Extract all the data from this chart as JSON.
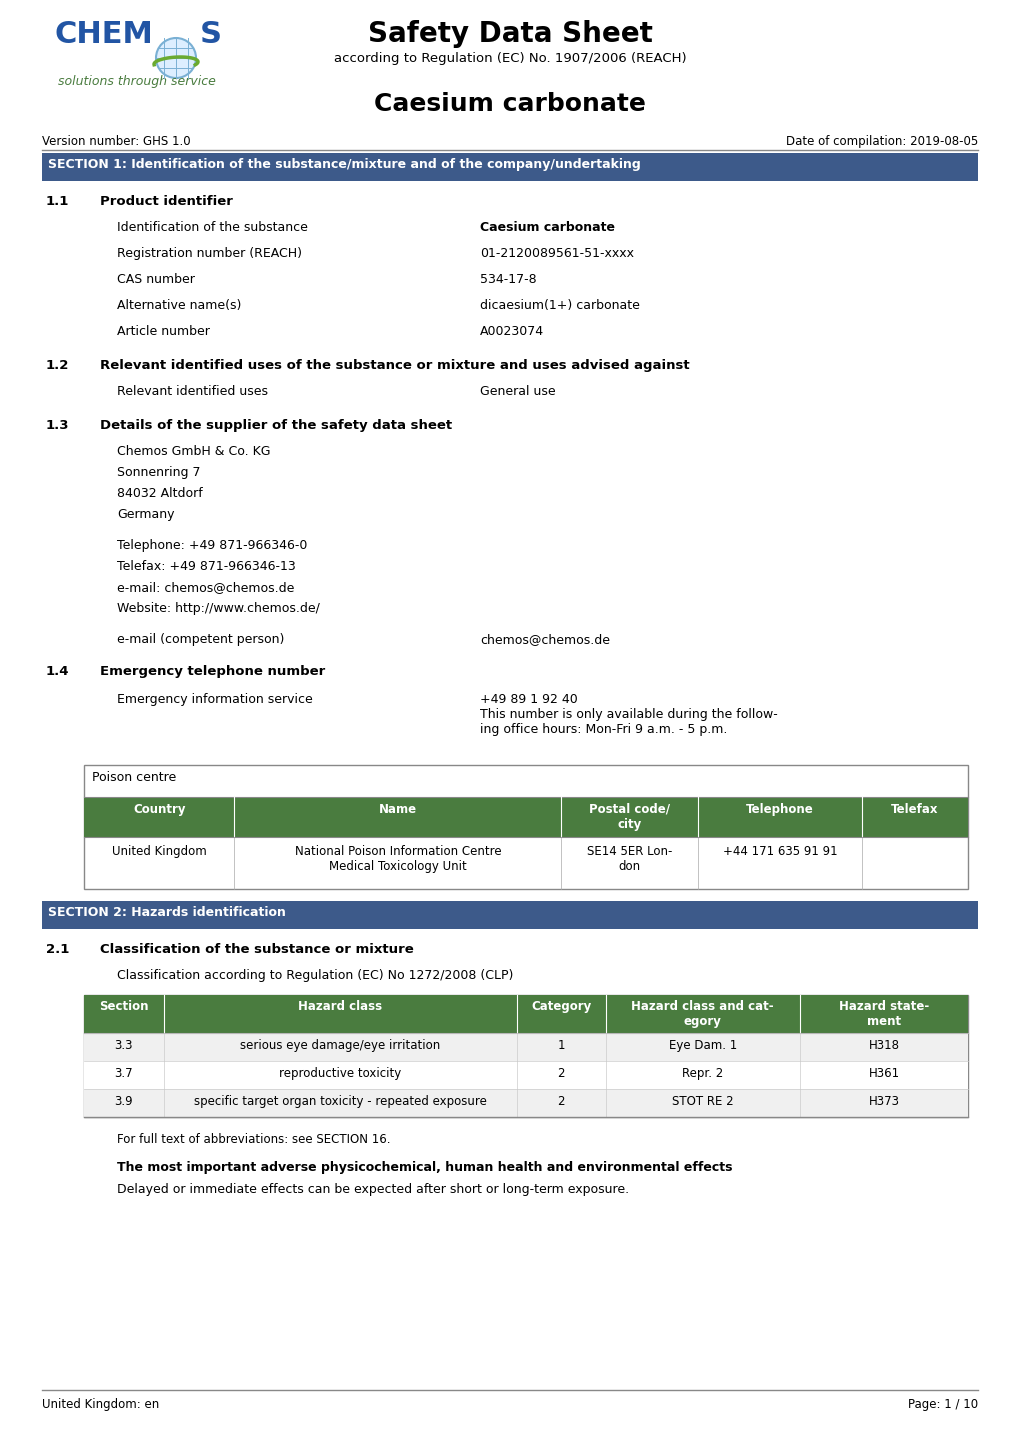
{
  "title": "Safety Data Sheet",
  "subtitle": "according to Regulation (EC) No. 1907/2006 (REACH)",
  "product_name": "Caesium carbonate",
  "version": "Version number: GHS 1.0",
  "date": "Date of compilation: 2019-08-05",
  "section1_title": "SECTION 1: Identification of the substance/mixture and of the company/undertaking",
  "section1_header_bg": "#3d5a8a",
  "section1_header_color": "#ffffff",
  "sub11_title": "Product identifier",
  "product_fields": [
    [
      "Identification of the substance",
      "Caesium carbonate",
      true
    ],
    [
      "Registration number (REACH)",
      "01-2120089561-51-xxxx",
      false
    ],
    [
      "CAS number",
      "534-17-8",
      false
    ],
    [
      "Alternative name(s)",
      "dicaesium(1+) carbonate",
      false
    ],
    [
      "Article number",
      "A0023074",
      false
    ]
  ],
  "sub12_title": "Relevant identified uses of the substance or mixture and uses advised against",
  "relevant_uses": [
    [
      "Relevant identified uses",
      "General use"
    ]
  ],
  "sub13_title": "Details of the supplier of the safety data sheet",
  "supplier_address": [
    "Chemos GmbH & Co. KG",
    "Sonnenring 7",
    "84032 Altdorf",
    "Germany"
  ],
  "supplier_contact": [
    "Telephone: +49 871-966346-0",
    "Telefax: +49 871-966346-13",
    "e-mail: chemos@chemos.de",
    "Website: http://www.chemos.de/"
  ],
  "email_competent": [
    "e-mail (competent person)",
    "chemos@chemos.de"
  ],
  "sub14_title": "Emergency telephone number",
  "emergency_field": "Emergency information service",
  "emergency_value": "+49 89 1 92 40\nThis number is only available during the follow-\ning office hours: Mon-Fri 9 a.m. - 5 p.m.",
  "poison_table_header": "Poison centre",
  "poison_col_headers": [
    "Country",
    "Name",
    "Postal code/\ncity",
    "Telephone",
    "Telefax"
  ],
  "poison_rows": [
    [
      "United Kingdom",
      "National Poison Information Centre\nMedical Toxicology Unit",
      "SE14 5ER Lon-\ndon",
      "+44 171 635 91 91",
      ""
    ]
  ],
  "poison_header_bg": "#4a7c3f",
  "poison_header_color": "#ffffff",
  "section2_title": "SECTION 2: Hazards identification",
  "section2_header_bg": "#3d5a8a",
  "section2_header_color": "#ffffff",
  "sub21_title": "Classification of the substance or mixture",
  "classification_subtitle": "Classification according to Regulation (EC) No 1272/2008 (CLP)",
  "hazard_col_headers": [
    "Section",
    "Hazard class",
    "Category",
    "Hazard class and cat-\negory",
    "Hazard state-\nment"
  ],
  "hazard_rows": [
    [
      "3.3",
      "serious eye damage/eye irritation",
      "1",
      "Eye Dam. 1",
      "H318"
    ],
    [
      "3.7",
      "reproductive toxicity",
      "2",
      "Repr. 2",
      "H361"
    ],
    [
      "3.9",
      "specific target organ toxicity - repeated exposure",
      "2",
      "STOT RE 2",
      "H373"
    ]
  ],
  "hazard_header_bg": "#4a7c3f",
  "hazard_header_color": "#ffffff",
  "abbrev_note": "For full text of abbreviations: see SECTION 16.",
  "important_effects_title": "The most important adverse physicochemical, human health and environmental effects",
  "important_effects_body": "Delayed or immediate effects can be expected after short or long-term exposure.",
  "footer_left": "United Kingdom: en",
  "footer_right": "Page: 1 / 10",
  "bg_color": "#ffffff"
}
